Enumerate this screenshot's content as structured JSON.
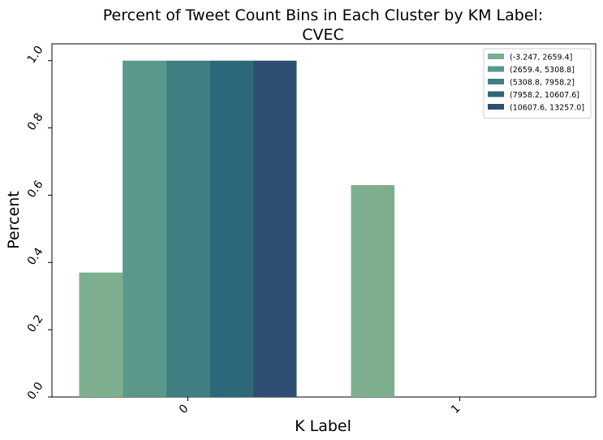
{
  "chart_data": {
    "type": "bar",
    "title_line1": "Percent of Tweet Count Bins in Each Cluster by KM Label:",
    "title_line2": "CVEC",
    "xlabel": "K Label",
    "ylabel": "Percent",
    "categories": [
      "0",
      "1"
    ],
    "ylim": [
      0,
      1.05
    ],
    "yticks": [
      "0.0",
      "0.2",
      "0.4",
      "0.6",
      "0.8",
      "1.0"
    ],
    "ytick_values": [
      0,
      0.2,
      0.4,
      0.6,
      0.8,
      1.0
    ],
    "grid": false,
    "legend_position": "top-right",
    "series": [
      {
        "name": "(-3.247, 2659.4]",
        "color": "#7daf8f",
        "values": [
          0.37,
          0.63
        ]
      },
      {
        "name": "(2659.4, 5308.8]",
        "color": "#5a988b",
        "values": [
          1.0,
          0
        ]
      },
      {
        "name": "(5308.8, 7958.2]",
        "color": "#3f7e83",
        "values": [
          1.0,
          0
        ]
      },
      {
        "name": "(7958.2, 10607.6]",
        "color": "#2c677a",
        "values": [
          1.0,
          0
        ]
      },
      {
        "name": "(10607.6, 13257.0]",
        "color": "#2e4f73",
        "values": [
          1.0,
          0
        ]
      }
    ]
  }
}
